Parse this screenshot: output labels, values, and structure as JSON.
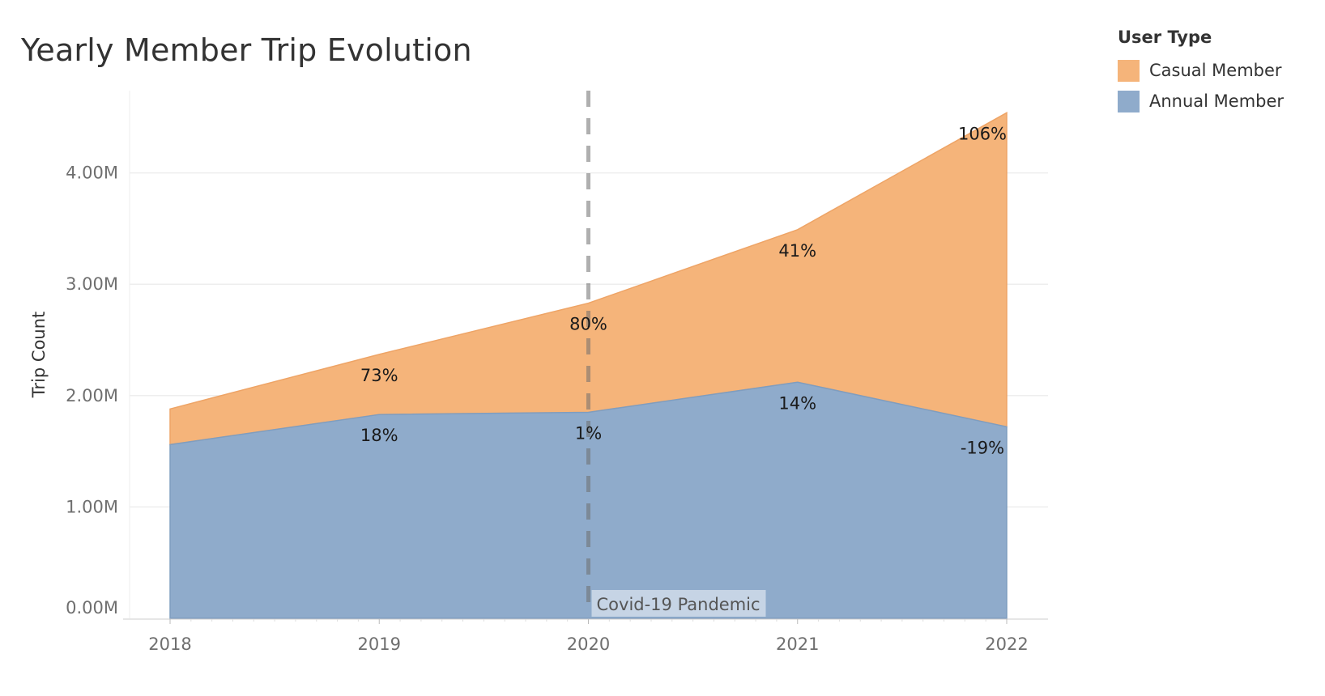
{
  "chart_data": {
    "type": "area",
    "title": "Yearly Member Trip Evolution",
    "ylabel": "Trip Count",
    "xlabel": "",
    "categories": [
      "2018",
      "2019",
      "2020",
      "2021",
      "2022"
    ],
    "ylim": [
      0,
      4.75
    ],
    "y_unit": "M",
    "y_ticks": [
      "0.00M",
      "1.00M",
      "2.00M",
      "3.00M",
      "4.00M"
    ],
    "stacked": true,
    "grid": true,
    "legend_title": "User Type",
    "legend_position": "top-right",
    "series": [
      {
        "name": "Annual Member",
        "color": "#8fabcb",
        "values": [
          1.56,
          1.83,
          1.85,
          2.12,
          1.72
        ],
        "labels": [
          "",
          "18%",
          "1%",
          "14%",
          "-19%"
        ]
      },
      {
        "name": "Casual Member",
        "color": "#f5b47a",
        "values": [
          0.32,
          0.54,
          0.98,
          1.37,
          2.82
        ],
        "labels": [
          "",
          "73%",
          "80%",
          "41%",
          "106%"
        ]
      }
    ],
    "annotation": {
      "text": "Covid-19 Pandemic",
      "x": "2020",
      "style": "dashed-vertical-line"
    }
  }
}
